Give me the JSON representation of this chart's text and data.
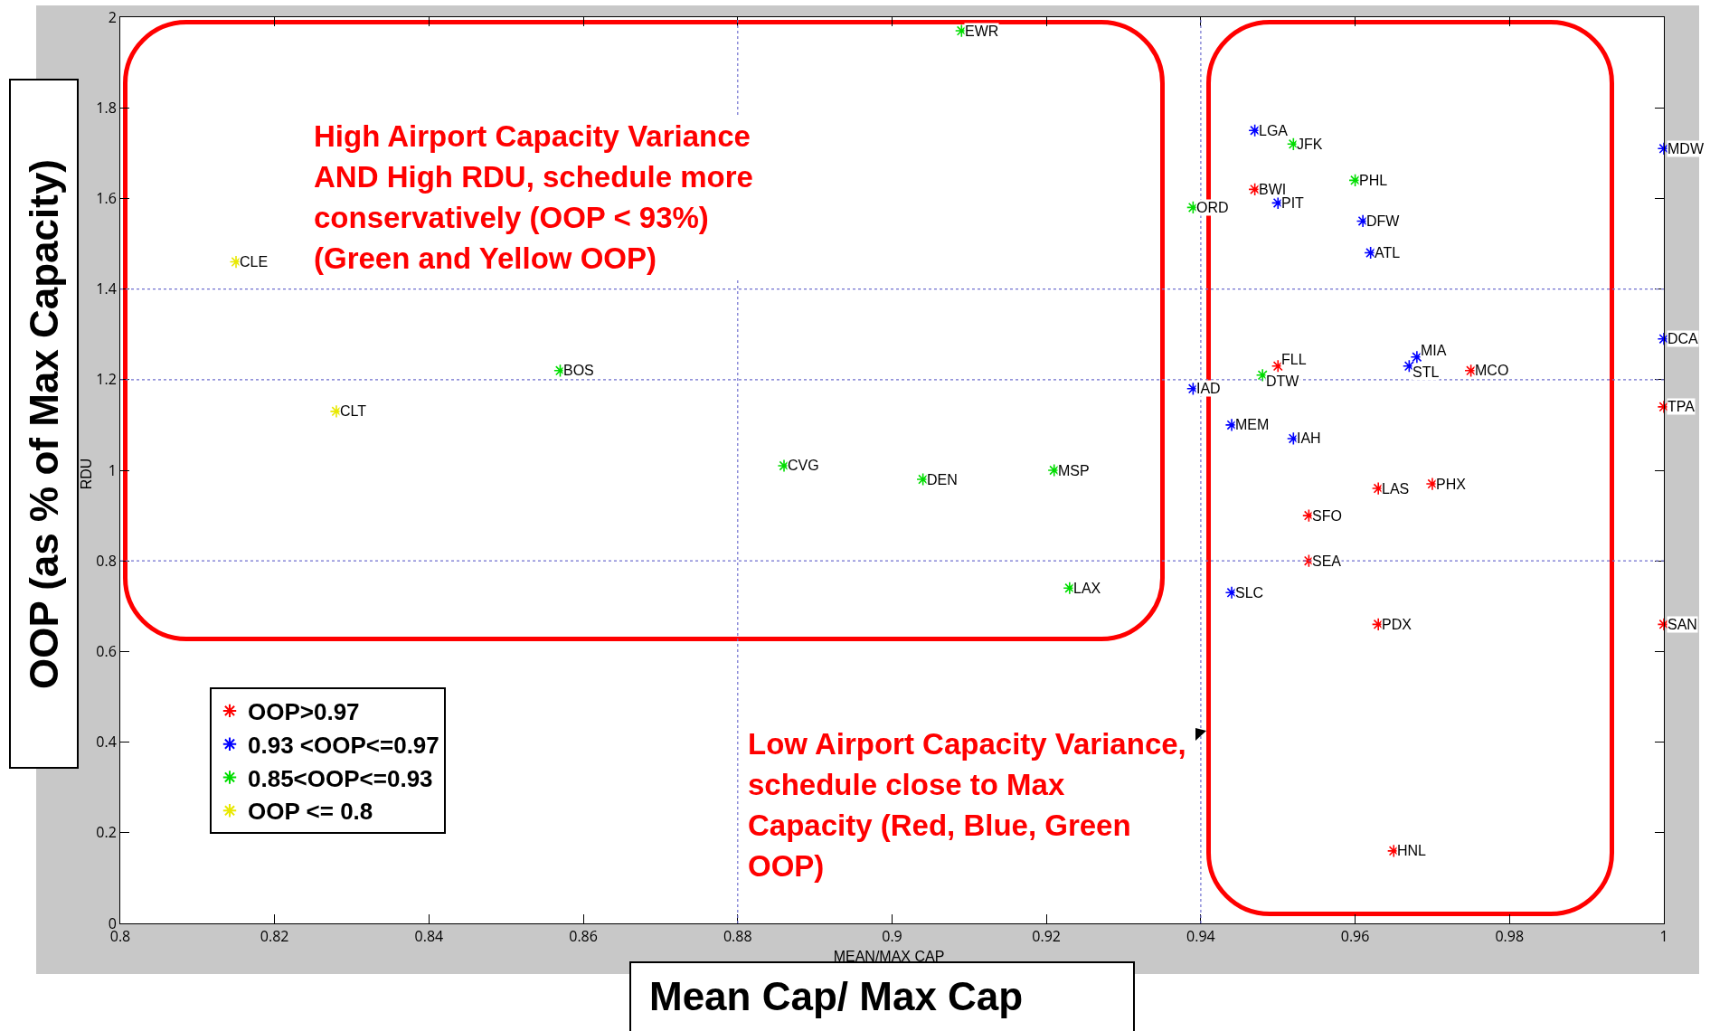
{
  "chart_data": {
    "type": "scatter",
    "xlabel": "Mean Cap/ Max Cap",
    "ylabel": "OOP (as % of Max Capacity)",
    "xlim": [
      0.8,
      1
    ],
    "xticks": [
      0.8,
      0.82,
      0.84,
      0.86,
      0.88,
      0.9,
      0.92,
      0.94,
      0.96,
      0.98,
      1
    ],
    "ylim": [
      0,
      2
    ],
    "yticks": [
      0,
      0.2,
      0.4,
      0.6,
      0.8,
      1,
      1.2,
      1.4,
      1.6,
      1.8,
      2
    ],
    "grid": false,
    "legend": "bottom left",
    "marker": "cross",
    "series": [
      {
        "name": "OOP>0.97",
        "color": "#ff0000",
        "x": [
          0.947,
          0.95,
          0.975,
          1,
          0.963,
          0.97,
          0.954,
          0.954,
          0.963,
          1,
          0.965
        ],
        "values": [
          1.62,
          1.23,
          1.22,
          1.14,
          0.96,
          0.97,
          0.9,
          0.8,
          0.66,
          0.66,
          0.16
        ]
      },
      {
        "name": "0.93 <OOP<=0.97",
        "color": "#0000ff",
        "x": [
          0.947,
          0.95,
          0.961,
          0.962,
          1,
          1,
          0.968,
          0.967,
          0.939,
          0.944,
          0.952,
          0.944
        ],
        "values": [
          1.75,
          1.59,
          1.55,
          1.48,
          1.71,
          1.29,
          1.25,
          1.23,
          1.18,
          1.1,
          1.07,
          0.73
        ]
      },
      {
        "name": "0.85<OOP<=0.93",
        "color": "#00dd00",
        "x": [
          0.909,
          0.857,
          0.886,
          0.904,
          0.921,
          0.923,
          0.952,
          0.96,
          0.939,
          0.948
        ],
        "values": [
          1.97,
          1.22,
          1.01,
          0.98,
          1.0,
          0.74,
          1.72,
          1.64,
          1.58,
          1.21
        ]
      },
      {
        "name": "OOP <= 0.8",
        "color": "#e8e800",
        "x": [
          0.815,
          0.828
        ],
        "values": [
          1.46,
          1.13
        ]
      }
    ],
    "ref_lines": [
      {
        "axis": "x",
        "value": 0.88,
        "line_style": "dotted"
      },
      {
        "axis": "x",
        "value": 0.94,
        "line_style": "dotted"
      },
      {
        "axis": "y",
        "value": 0.8,
        "line_style": "dotted"
      },
      {
        "axis": "y",
        "value": 1.2,
        "line_style": "dotted"
      },
      {
        "axis": "y",
        "value": 1.4,
        "line_style": "dotted"
      }
    ],
    "annotations": [
      "High Airport Capacity Variance AND High RDU, schedule more conservatively (OOP < 93%) (Green and Yellow OOP)",
      "Low Airport Capacity Variance, schedule close to Max Capacity (Red, Blue, Green OOP)",
      "MEAN/MAX CAP",
      "RDU",
      {
        "text": "BWI",
        "x": 0.947,
        "y": 1.62
      },
      {
        "text": "FLL",
        "x": 0.95,
        "y": 1.23
      },
      {
        "text": "MCO",
        "x": 0.975,
        "y": 1.22
      },
      {
        "text": "TPA",
        "x": 1,
        "y": 1.14
      },
      {
        "text": "LAS",
        "x": 0.963,
        "y": 0.96
      },
      {
        "text": "PHX",
        "x": 0.97,
        "y": 0.97
      },
      {
        "text": "SFO",
        "x": 0.954,
        "y": 0.9
      },
      {
        "text": "SEA",
        "x": 0.954,
        "y": 0.8
      },
      {
        "text": "PDX",
        "x": 0.963,
        "y": 0.66
      },
      {
        "text": "SAN",
        "x": 1,
        "y": 0.66
      },
      {
        "text": "HNL",
        "x": 0.965,
        "y": 0.16
      },
      {
        "text": "LGA",
        "x": 0.947,
        "y": 1.75
      },
      {
        "text": "PIT",
        "x": 0.95,
        "y": 1.59
      },
      {
        "text": "DFW",
        "x": 0.961,
        "y": 1.55
      },
      {
        "text": "ATL",
        "x": 0.962,
        "y": 1.48
      },
      {
        "text": "MDW",
        "x": 1,
        "y": 1.71
      },
      {
        "text": "DCA",
        "x": 1,
        "y": 1.29
      },
      {
        "text": "MIA",
        "x": 0.968,
        "y": 1.25
      },
      {
        "text": "STL",
        "x": 0.967,
        "y": 1.23
      },
      {
        "text": "IAD",
        "x": 0.939,
        "y": 1.18
      },
      {
        "text": "MEM",
        "x": 0.944,
        "y": 1.1
      },
      {
        "text": "IAH",
        "x": 0.952,
        "y": 1.07
      },
      {
        "text": "SLC",
        "x": 0.944,
        "y": 0.73
      },
      {
        "text": "EWR",
        "x": 0.909,
        "y": 1.97
      },
      {
        "text": "BOS",
        "x": 0.857,
        "y": 1.22
      },
      {
        "text": "CVG",
        "x": 0.886,
        "y": 1.01
      },
      {
        "text": "DEN",
        "x": 0.904,
        "y": 0.98
      },
      {
        "text": "MSP",
        "x": 0.921,
        "y": 1.0
      },
      {
        "text": "LAX",
        "x": 0.923,
        "y": 0.74
      },
      {
        "text": "JFK",
        "x": 0.952,
        "y": 1.72
      },
      {
        "text": "PHL",
        "x": 0.96,
        "y": 1.64
      },
      {
        "text": "ORD",
        "x": 0.939,
        "y": 1.58
      },
      {
        "text": "DTW",
        "x": 0.948,
        "y": 1.21
      },
      {
        "text": "CLE",
        "x": 0.815,
        "y": 1.46
      },
      {
        "text": "CLT",
        "x": 0.828,
        "y": 1.13
      }
    ]
  }
}
